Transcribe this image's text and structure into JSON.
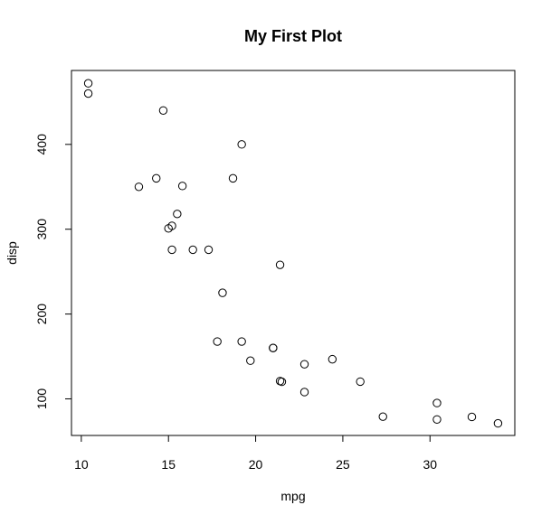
{
  "chart_data": {
    "type": "scatter",
    "title": "My First Plot",
    "xlabel": "mpg",
    "ylabel": "disp",
    "xticks": [
      10,
      15,
      20,
      25,
      30
    ],
    "yticks": [
      100,
      200,
      300,
      400
    ],
    "xlim": [
      9.436,
      34.864
    ],
    "ylim": [
      56.84,
      487.16
    ],
    "grid": false,
    "points": [
      {
        "x": 21.0,
        "y": 160
      },
      {
        "x": 21.0,
        "y": 160
      },
      {
        "x": 22.8,
        "y": 108
      },
      {
        "x": 21.4,
        "y": 258
      },
      {
        "x": 18.7,
        "y": 360
      },
      {
        "x": 18.1,
        "y": 225
      },
      {
        "x": 14.3,
        "y": 360
      },
      {
        "x": 24.4,
        "y": 146.7
      },
      {
        "x": 22.8,
        "y": 140.8
      },
      {
        "x": 19.2,
        "y": 167.6
      },
      {
        "x": 17.8,
        "y": 167.6
      },
      {
        "x": 16.4,
        "y": 275.8
      },
      {
        "x": 17.3,
        "y": 275.8
      },
      {
        "x": 15.2,
        "y": 275.8
      },
      {
        "x": 10.4,
        "y": 472
      },
      {
        "x": 10.4,
        "y": 460
      },
      {
        "x": 14.7,
        "y": 440
      },
      {
        "x": 32.4,
        "y": 78.7
      },
      {
        "x": 30.4,
        "y": 75.7
      },
      {
        "x": 33.9,
        "y": 71.1
      },
      {
        "x": 21.5,
        "y": 120.1
      },
      {
        "x": 15.5,
        "y": 318
      },
      {
        "x": 15.2,
        "y": 304
      },
      {
        "x": 13.3,
        "y": 350
      },
      {
        "x": 19.2,
        "y": 400
      },
      {
        "x": 27.3,
        "y": 79
      },
      {
        "x": 26.0,
        "y": 120.3
      },
      {
        "x": 30.4,
        "y": 95.1
      },
      {
        "x": 15.8,
        "y": 351
      },
      {
        "x": 19.7,
        "y": 145
      },
      {
        "x": 15.0,
        "y": 301
      },
      {
        "x": 21.4,
        "y": 121
      }
    ]
  }
}
